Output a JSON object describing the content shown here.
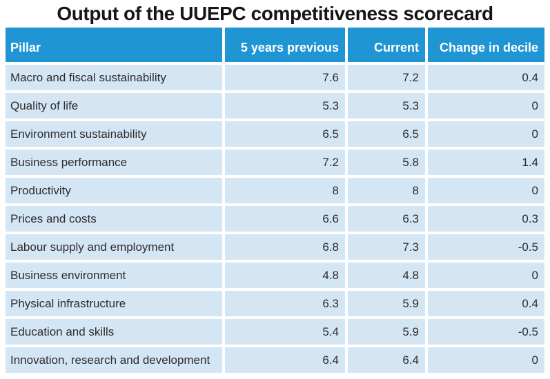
{
  "title": "Output of the UUEPC competitiveness scorecard",
  "colors": {
    "header_bg": "#2095d3",
    "row_bg": "#d4e5f4",
    "header_text": "#ffffff",
    "body_text": "#2d2d2d",
    "title_text": "#161616"
  },
  "table": {
    "columns": [
      "Pillar",
      "5 years previous",
      "Current",
      "Change in decile"
    ],
    "rows": [
      {
        "pillar": "Macro and fiscal sustainability",
        "prev": "7.6",
        "current": "7.2",
        "change": "0.4"
      },
      {
        "pillar": "Quality of life",
        "prev": "5.3",
        "current": "5.3",
        "change": "0"
      },
      {
        "pillar": "Environment sustainability",
        "prev": "6.5",
        "current": "6.5",
        "change": "0"
      },
      {
        "pillar": "Business performance",
        "prev": "7.2",
        "current": "5.8",
        "change": "1.4"
      },
      {
        "pillar": "Productivity",
        "prev": "8",
        "current": "8",
        "change": "0"
      },
      {
        "pillar": "Prices and costs",
        "prev": "6.6",
        "current": "6.3",
        "change": "0.3"
      },
      {
        "pillar": "Labour supply and employment",
        "prev": "6.8",
        "current": "7.3",
        "change": "-0.5"
      },
      {
        "pillar": "Business environment",
        "prev": "4.8",
        "current": "4.8",
        "change": "0"
      },
      {
        "pillar": "Physical infrastructure",
        "prev": "6.3",
        "current": "5.9",
        "change": "0.4"
      },
      {
        "pillar": "Education and skills",
        "prev": "5.4",
        "current": "5.9",
        "change": "-0.5"
      },
      {
        "pillar": "Innovation, research and development",
        "prev": "6.4",
        "current": "6.4",
        "change": "0"
      }
    ]
  },
  "chart_data": {
    "type": "table",
    "title": "Output of the UUEPC competitiveness scorecard",
    "columns": [
      "Pillar",
      "5 years previous",
      "Current",
      "Change in decile"
    ],
    "rows": [
      [
        "Macro and fiscal sustainability",
        7.6,
        7.2,
        0.4
      ],
      [
        "Quality of life",
        5.3,
        5.3,
        0
      ],
      [
        "Environment sustainability",
        6.5,
        6.5,
        0
      ],
      [
        "Business performance",
        7.2,
        5.8,
        1.4
      ],
      [
        "Productivity",
        8,
        8,
        0
      ],
      [
        "Prices and costs",
        6.6,
        6.3,
        0.3
      ],
      [
        "Labour supply and employment",
        6.8,
        7.3,
        -0.5
      ],
      [
        "Business environment",
        4.8,
        4.8,
        0
      ],
      [
        "Physical infrastructure",
        6.3,
        5.9,
        0.4
      ],
      [
        "Education and skills",
        5.4,
        5.9,
        -0.5
      ],
      [
        "Innovation, research and development",
        6.4,
        6.4,
        0
      ]
    ]
  }
}
